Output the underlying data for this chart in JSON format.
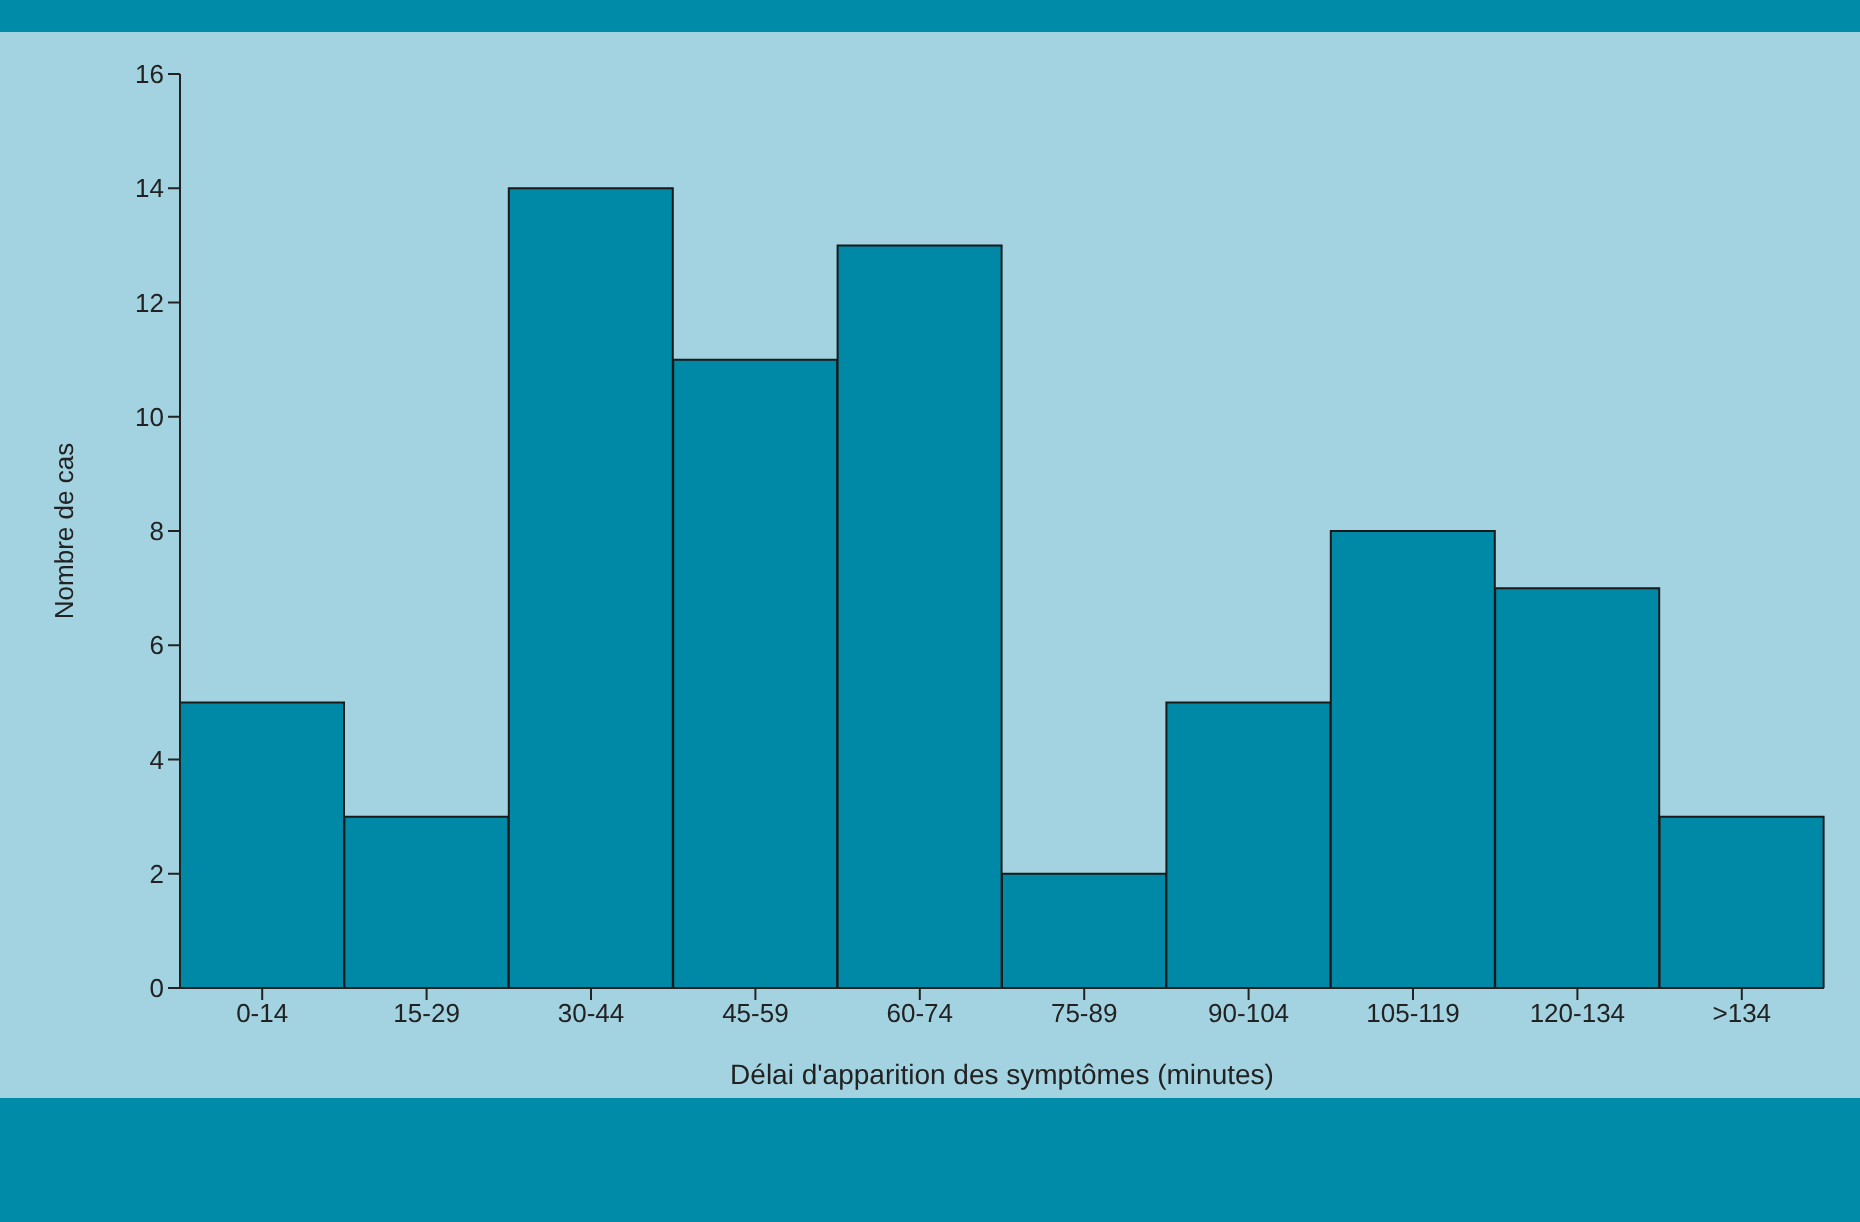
{
  "chart_data": {
    "type": "bar",
    "xlabel": "Délai d'apparition des symptômes (minutes)",
    "ylabel": "Nombre de cas",
    "categories": [
      "0-14",
      "15-29",
      "30-44",
      "45-59",
      "60-74",
      "75-89",
      "90-104",
      "105-119",
      "120-134",
      ">134"
    ],
    "values": [
      5,
      3,
      14,
      11,
      13,
      2,
      5,
      8,
      7,
      3
    ],
    "color": "#0089a6",
    "ylim": [
      0,
      16
    ],
    "yticks": [
      0,
      2,
      4,
      6,
      8,
      10,
      12,
      14,
      16
    ],
    "grid": false,
    "legend": false
  }
}
